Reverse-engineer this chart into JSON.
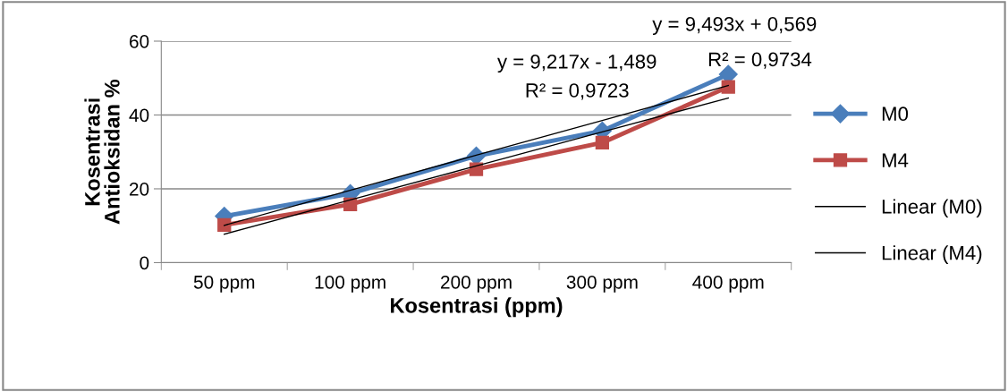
{
  "chart_data": {
    "type": "line",
    "xlabel": "Kosentrasi (ppm)",
    "ylabel": "Kosentrasi\nAntioksidan %",
    "categories": [
      "50 ppm",
      "100 ppm",
      "200 ppm",
      "300 ppm",
      "400 ppm"
    ],
    "series": [
      {
        "name": "M0",
        "color": "#4a7ebb",
        "marker": "diamond",
        "values": [
          12.6,
          18.7,
          28.9,
          35.7,
          51
        ]
      },
      {
        "name": "M4",
        "color": "#be4b48",
        "marker": "square",
        "values": [
          10.2,
          15.8,
          25.3,
          32.5,
          47.6
        ]
      },
      {
        "name": "Linear (M0)",
        "color": "#000000",
        "marker": "none",
        "values": [
          10.1,
          19.6,
          29.1,
          38.5,
          48
        ]
      },
      {
        "name": "Linear (M4)",
        "color": "#000000",
        "marker": "none",
        "values": [
          7.7,
          17,
          26.2,
          35.4,
          44.6
        ]
      }
    ],
    "annotations": [
      "y = 9,217x - 1,489",
      "R² = 0,9723",
      "y = 9,493x + 0,569",
      "R² = 0,9734"
    ],
    "ylim": [
      0,
      60
    ],
    "yticks": [
      0,
      20,
      40,
      60
    ],
    "grid": "y",
    "legend": "right",
    "line_style": "solid"
  }
}
